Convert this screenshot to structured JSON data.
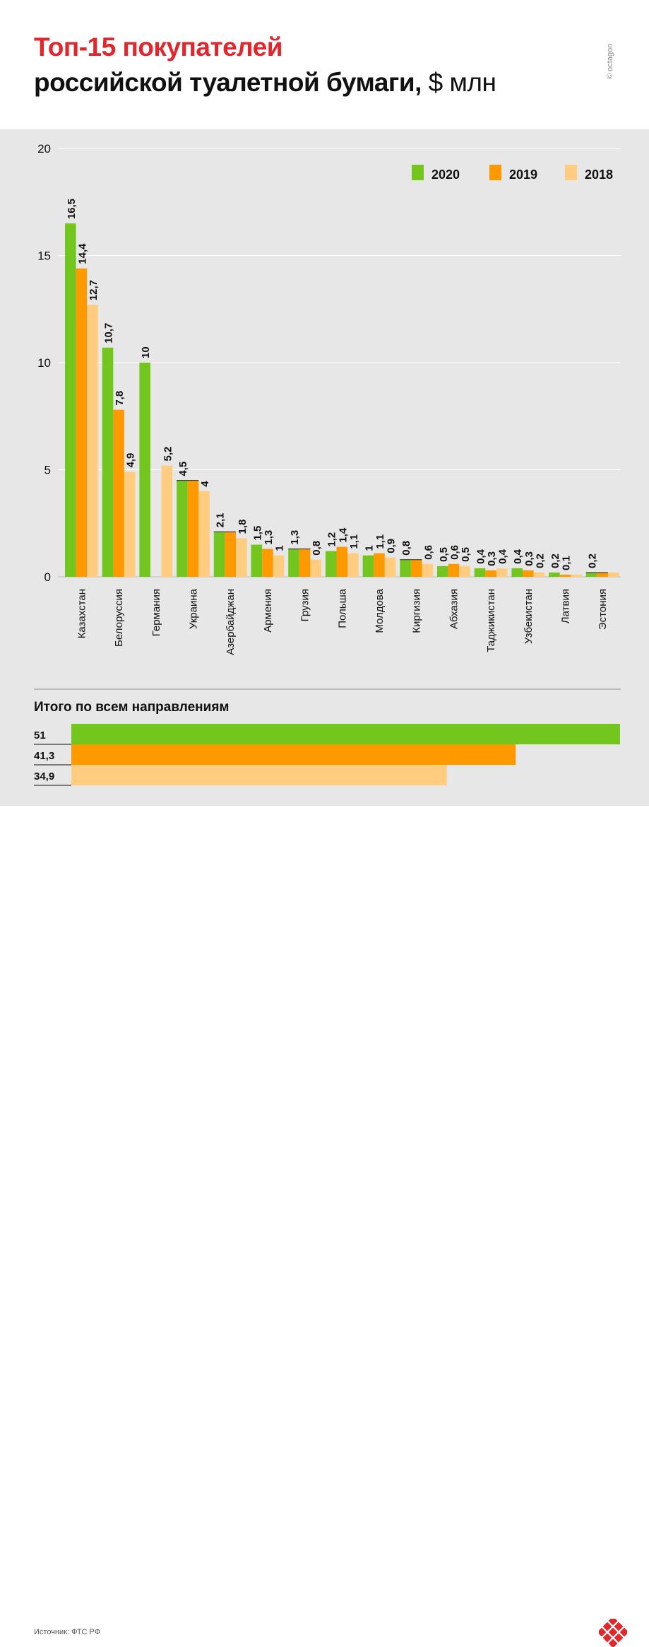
{
  "header": {
    "title_line1": "Топ-15 покупателей",
    "title_line2_main": "российской туалетной бумаги,",
    "title_line2_unit": "$ млн",
    "copyright": "© octagon"
  },
  "colors": {
    "2020": "#72c61d",
    "2019": "#ff9900",
    "2018": "#ffcc80",
    "title_red": "#e3262b",
    "logo_red": "#e3262b"
  },
  "chart_data": {
    "type": "bar",
    "yaxis": {
      "min": 0,
      "max": 20,
      "ticks": [
        "0",
        "5",
        "10",
        "15",
        "20"
      ]
    },
    "categories": [
      "Казахстан",
      "Белоруссия",
      "Германия",
      "Украина",
      "Азербайджан",
      "Армения",
      "Грузия",
      "Польша",
      "Молдова",
      "Киргизия",
      "Абхазия",
      "Таджикистан",
      "Узбекистан",
      "Латвия",
      "Эстония"
    ],
    "series": [
      {
        "name": "2020",
        "values": [
          16.5,
          10.7,
          10,
          4.5,
          2.1,
          1.5,
          1.3,
          1.2,
          1,
          0.8,
          0.5,
          0.4,
          0.4,
          0.2,
          0.2
        ],
        "labels": [
          "16,5",
          "10,7",
          "10",
          "4,5",
          "2,1",
          "1,5",
          "1,3",
          "1,2",
          "1",
          "0,8",
          "0,5",
          "0,4",
          "0,4",
          "0,2",
          "0,2"
        ]
      },
      {
        "name": "2019",
        "values": [
          14.4,
          7.8,
          0,
          4.5,
          2.1,
          1.3,
          1.3,
          1.4,
          1.1,
          0.8,
          0.6,
          0.3,
          0.3,
          0.1,
          0.2
        ],
        "labels": [
          "14,4",
          "7,8",
          "",
          "",
          "",
          "1,3",
          "",
          "1,4",
          "1,1",
          "",
          "0,6",
          "0,3",
          "0,3",
          "0,1",
          ""
        ]
      },
      {
        "name": "2018",
        "values": [
          12.7,
          4.9,
          5.2,
          4,
          1.8,
          1,
          0.8,
          1.1,
          0.9,
          0.6,
          0.5,
          0.4,
          0.2,
          0.1,
          0.2
        ],
        "labels": [
          "12,7",
          "4,9",
          "5,2",
          "4",
          "1,8",
          "1",
          "0,8",
          "1,1",
          "0,9",
          "0,6",
          "0,5",
          "0,4",
          "0,2",
          "",
          ""
        ]
      }
    ],
    "legend": {
      "placement": "top-right",
      "entries": [
        "2020",
        "2019",
        "2018"
      ]
    }
  },
  "totals": {
    "title": "Итого по всем направлениям",
    "max": 51,
    "rows": [
      {
        "year": "2020",
        "value": 51,
        "label": "51"
      },
      {
        "year": "2019",
        "value": 41.3,
        "label": "41,3"
      },
      {
        "year": "2018",
        "value": 34.9,
        "label": "34,9"
      }
    ]
  },
  "footer": {
    "source": "Источник: ФТС РФ",
    "logo_icon": "octagon-logo-icon"
  }
}
